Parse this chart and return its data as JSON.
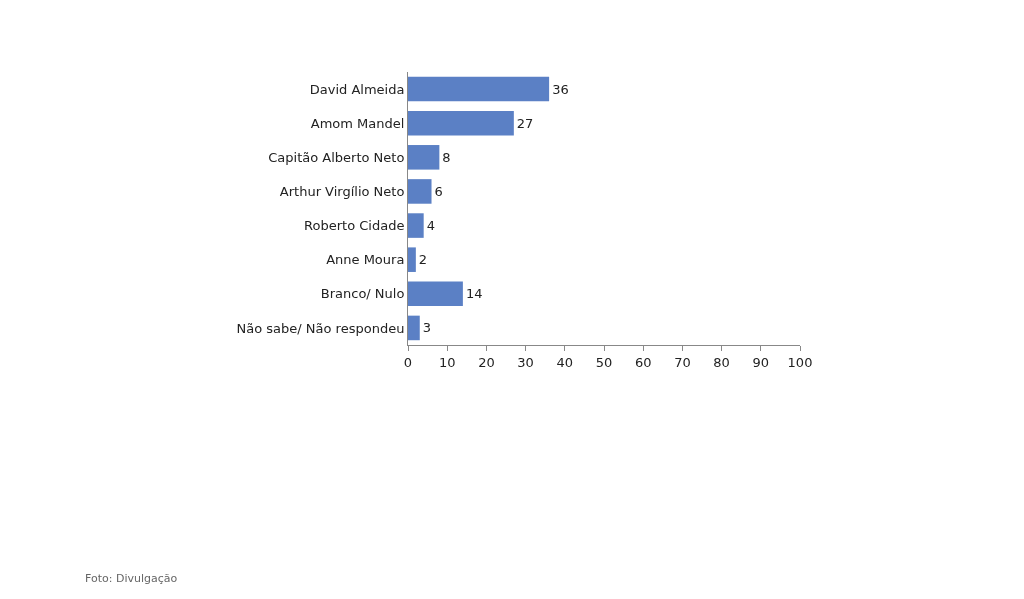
{
  "chart_data": {
    "type": "bar",
    "orientation": "horizontal",
    "categories": [
      "David Almeida",
      "Amom Mandel",
      "Capitão Alberto Neto",
      "Arthur Virgílio Neto",
      "Roberto Cidade",
      "Anne Moura",
      "Branco/ Nulo",
      "Não sabe/ Não respondeu"
    ],
    "values": [
      36,
      27,
      8,
      6,
      4,
      2,
      14,
      3
    ],
    "color": "#5b80c5",
    "xlim": [
      0,
      100
    ],
    "xticks": [
      0,
      10,
      20,
      30,
      40,
      50,
      60,
      70,
      80,
      90,
      100
    ],
    "data_labels": true,
    "legend": false,
    "annotations": [
      "Foto: Divulgação"
    ]
  }
}
